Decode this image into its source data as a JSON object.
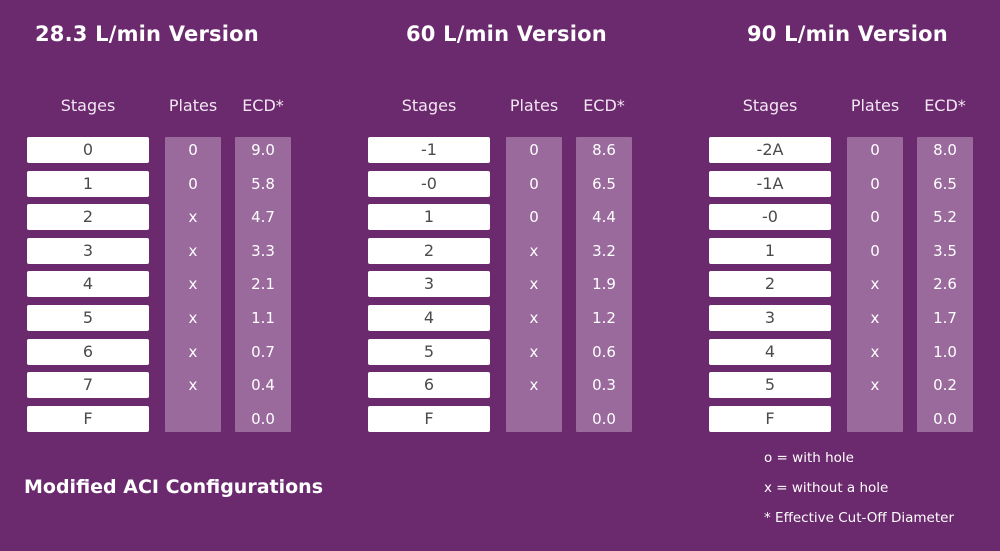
{
  "headers": {
    "stages": "Stages",
    "plates": "Plates",
    "ecd": "ECD*"
  },
  "sections": [
    {
      "title": "28.3 L/min Version",
      "rows": [
        {
          "stage": "0",
          "plate": "0",
          "ecd": "9.0"
        },
        {
          "stage": "1",
          "plate": "0",
          "ecd": "5.8"
        },
        {
          "stage": "2",
          "plate": "x",
          "ecd": "4.7"
        },
        {
          "stage": "3",
          "plate": "x",
          "ecd": "3.3"
        },
        {
          "stage": "4",
          "plate": "x",
          "ecd": "2.1"
        },
        {
          "stage": "5",
          "plate": "x",
          "ecd": "1.1"
        },
        {
          "stage": "6",
          "plate": "x",
          "ecd": "0.7"
        },
        {
          "stage": "7",
          "plate": "x",
          "ecd": "0.4"
        },
        {
          "stage": "F",
          "plate": "",
          "ecd": "0.0"
        }
      ]
    },
    {
      "title": "60 L/min Version",
      "rows": [
        {
          "stage": "-1",
          "plate": "0",
          "ecd": "8.6"
        },
        {
          "stage": "-0",
          "plate": "0",
          "ecd": "6.5"
        },
        {
          "stage": "1",
          "plate": "0",
          "ecd": "4.4"
        },
        {
          "stage": "2",
          "plate": "x",
          "ecd": "3.2"
        },
        {
          "stage": "3",
          "plate": "x",
          "ecd": "1.9"
        },
        {
          "stage": "4",
          "plate": "x",
          "ecd": "1.2"
        },
        {
          "stage": "5",
          "plate": "x",
          "ecd": "0.6"
        },
        {
          "stage": "6",
          "plate": "x",
          "ecd": "0.3"
        },
        {
          "stage": "F",
          "plate": "",
          "ecd": "0.0"
        }
      ]
    },
    {
      "title": "90 L/min Version",
      "rows": [
        {
          "stage": "-2A",
          "plate": "0",
          "ecd": "8.0"
        },
        {
          "stage": "-1A",
          "plate": "0",
          "ecd": "6.5"
        },
        {
          "stage": "-0",
          "plate": "0",
          "ecd": "5.2"
        },
        {
          "stage": "1",
          "plate": "0",
          "ecd": "3.5"
        },
        {
          "stage": "2",
          "plate": "x",
          "ecd": "2.6"
        },
        {
          "stage": "3",
          "plate": "x",
          "ecd": "1.7"
        },
        {
          "stage": "4",
          "plate": "x",
          "ecd": "1.0"
        },
        {
          "stage": "5",
          "plate": "x",
          "ecd": "0.2"
        },
        {
          "stage": "F",
          "plate": "",
          "ecd": "0.0"
        }
      ]
    }
  ],
  "footer_title": "Modified ACI Configurations",
  "legend": [
    "o = with hole",
    "x = without a hole",
    "* Effective Cut-Off Diameter"
  ],
  "colors": {
    "background": "#6c2a6e",
    "column_fill": "#9b6a9d",
    "stage_box": "#ffffff",
    "text": "#ffffff"
  }
}
